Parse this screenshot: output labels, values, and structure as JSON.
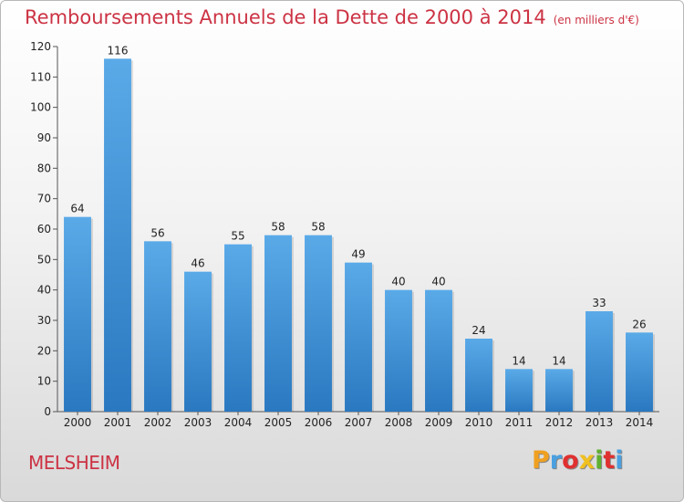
{
  "page": {
    "title": "Remboursements Annuels de la Dette de 2000 à 2014",
    "unit": "(en milliers d'€)",
    "city": "MELSHEIM",
    "logo": {
      "letters": [
        "P",
        "r",
        "o",
        "x",
        "i",
        "t",
        "i"
      ],
      "colors": [
        "#f0a020",
        "#4aa0e0",
        "#e03030",
        "#f0c020",
        "#60b030",
        "#e03030",
        "#4aa0e0"
      ]
    }
  },
  "chart_data": {
    "type": "bar",
    "title": "Remboursements Annuels de la Dette de 2000 à 2014",
    "categories": [
      "2000",
      "2001",
      "2002",
      "2003",
      "2004",
      "2005",
      "2006",
      "2007",
      "2008",
      "2009",
      "2010",
      "2011",
      "2012",
      "2013",
      "2014"
    ],
    "values": [
      64,
      116,
      56,
      46,
      55,
      58,
      58,
      49,
      40,
      40,
      24,
      14,
      14,
      33,
      26
    ],
    "ylim": [
      0,
      120
    ],
    "yticks": [
      0,
      10,
      20,
      30,
      40,
      50,
      60,
      70,
      80,
      90,
      100,
      110,
      120
    ],
    "grid": false,
    "bar_color": "#3a8fd8"
  }
}
